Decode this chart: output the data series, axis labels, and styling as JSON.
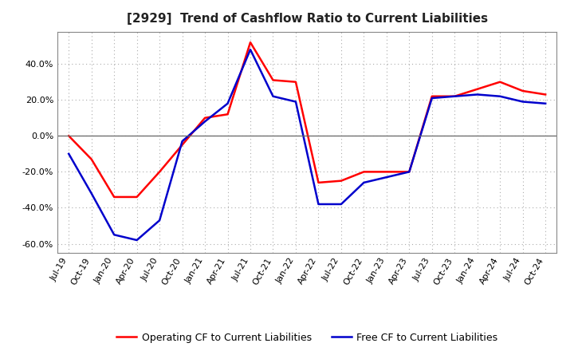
{
  "title": "[2929]  Trend of Cashflow Ratio to Current Liabilities",
  "x_labels": [
    "Jul-19",
    "Oct-19",
    "Jan-20",
    "Apr-20",
    "Jul-20",
    "Oct-20",
    "Jan-21",
    "Apr-21",
    "Jul-21",
    "Oct-21",
    "Jan-22",
    "Apr-22",
    "Jul-22",
    "Oct-22",
    "Jan-23",
    "Apr-23",
    "Jul-23",
    "Oct-23",
    "Jan-24",
    "Apr-24",
    "Jul-24",
    "Oct-24"
  ],
  "operating_cf": [
    0.0,
    -13.0,
    -34.0,
    -34.0,
    -20.0,
    -5.0,
    10.0,
    12.0,
    52.0,
    31.0,
    30.0,
    -26.0,
    -25.0,
    -20.0,
    -20.0,
    -20.0,
    22.0,
    22.0,
    26.0,
    30.0,
    25.0,
    23.0
  ],
  "free_cf": [
    -10.0,
    -32.0,
    -55.0,
    -58.0,
    -47.0,
    -3.0,
    8.0,
    18.0,
    48.0,
    22.0,
    19.0,
    -38.0,
    -38.0,
    -26.0,
    -23.0,
    -20.0,
    21.0,
    22.0,
    23.0,
    22.0,
    19.0,
    18.0
  ],
  "ylim": [
    -65,
    58
  ],
  "yticks": [
    -60,
    -40,
    -20,
    0,
    20,
    40
  ],
  "operating_color": "#ff0000",
  "free_color": "#0000cc",
  "line_width": 1.8,
  "background_color": "#ffffff",
  "plot_bg_color": "#ffffff",
  "grid_color": "#aaaaaa",
  "title_fontsize": 11,
  "tick_fontsize": 8,
  "legend_fontsize": 9,
  "legend_operating": "Operating CF to Current Liabilities",
  "legend_free": "Free CF to Current Liabilities"
}
